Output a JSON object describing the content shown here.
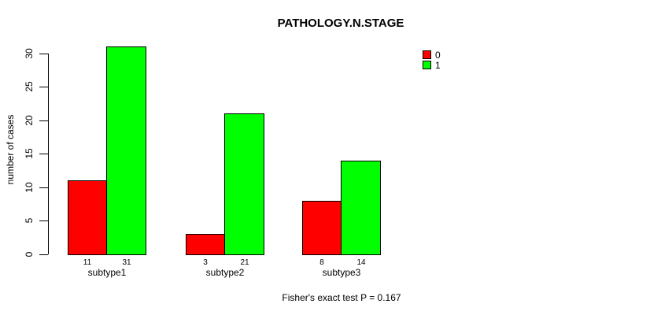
{
  "title": "PATHOLOGY.N.STAGE",
  "chart_data": {
    "type": "bar",
    "title": "PATHOLOGY.N.STAGE",
    "categories": [
      "subtype1",
      "subtype2",
      "subtype3"
    ],
    "series": [
      {
        "name": "0",
        "color": "#FF0000",
        "values": [
          11,
          3,
          8
        ]
      },
      {
        "name": "1",
        "color": "#00FF00",
        "values": [
          31,
          21,
          14
        ]
      }
    ],
    "show_bar_value_labels": true,
    "ylabel": "number of cases",
    "xlabel": "",
    "yticks": [
      0,
      5,
      10,
      15,
      20,
      25,
      30
    ],
    "ylim": [
      0,
      31
    ],
    "grid": false,
    "legend_position": "top-right",
    "annotation": "Fisher's exact test P = 0.167",
    "colors": {
      "background": "#FFFFFF",
      "text": "#000000",
      "axis": "#000000"
    }
  }
}
